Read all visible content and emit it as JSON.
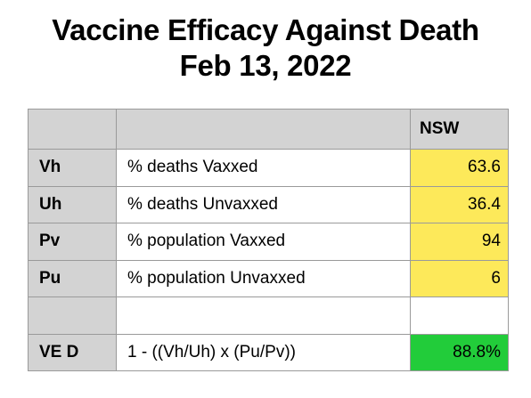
{
  "title": {
    "line1": "Vaccine Efficacy Against Death",
    "line2": "Feb 13, 2022"
  },
  "table": {
    "header": {
      "col1": "",
      "col2": "",
      "col3": "NSW"
    },
    "rows": [
      {
        "key": "Vh",
        "description": "% deaths Vaxxed",
        "value": "63.6"
      },
      {
        "key": "Uh",
        "description": "% deaths Unvaxxed",
        "value": "36.4"
      },
      {
        "key": "Pv",
        "description": "% population Vaxxed",
        "value": "94"
      },
      {
        "key": "Pu",
        "description": "% population Unvaxxed",
        "value": "6"
      }
    ],
    "result": {
      "key": "VE D",
      "description": "1 - ((Vh/Uh) x (Pu/Pv))",
      "value": "88.8%"
    }
  },
  "colors": {
    "header_fill": "#d3d3d3",
    "input_value_fill": "#fde95a",
    "result_value_fill": "#22cc3a",
    "grid_line": "#9a9a9a"
  }
}
